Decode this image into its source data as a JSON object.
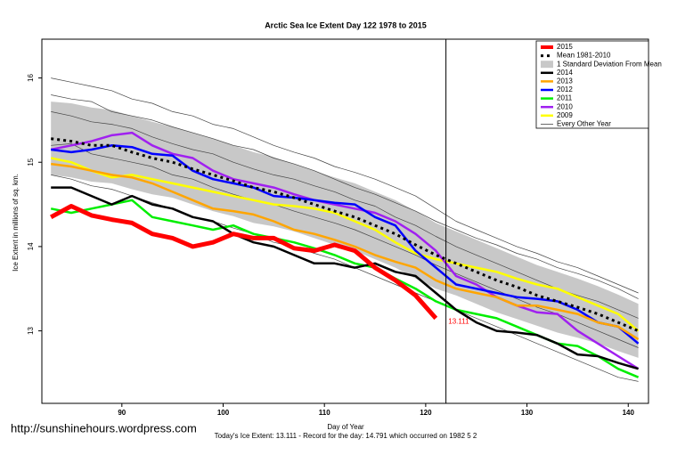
{
  "chart_data": {
    "type": "line",
    "title": "Arctic Sea Ice Extent Day 122 1978 to 2015",
    "xlabel": "Day of Year",
    "ylabel": "Ice Extent in millions of sq. km.",
    "footer": "Today's Ice Extent: 13.111  - Record for the day: 14.791 which occurred on 1982 5 2",
    "watermark": "http://sunshinehours.wordpress.com",
    "xlim": [
      82.1,
      142
    ],
    "ylim": [
      12.14,
      16.46
    ],
    "xticks": [
      90,
      100,
      110,
      120,
      130,
      140
    ],
    "yticks": [
      13,
      14,
      15,
      16
    ],
    "marker_x": 122,
    "x": [
      83,
      85,
      87,
      89,
      91,
      93,
      95,
      97,
      99,
      101,
      103,
      105,
      107,
      109,
      111,
      113,
      115,
      117,
      119,
      121,
      123,
      125,
      127,
      129,
      131,
      133,
      135,
      137,
      139,
      141
    ],
    "series": [
      {
        "name": "2015",
        "color": "#ff0000",
        "width": 5,
        "last_value_label": "13.111",
        "values": [
          14.35,
          14.48,
          14.37,
          14.32,
          14.28,
          14.15,
          14.1,
          14.0,
          14.05,
          14.15,
          14.1,
          14.1,
          13.98,
          13.95,
          14.02,
          13.95,
          13.75,
          13.6,
          13.42,
          13.15,
          null,
          null,
          null,
          null,
          null,
          null,
          null,
          null,
          null,
          null
        ]
      },
      {
        "name": "Mean 1981-2010",
        "color": "#000000",
        "width": 3,
        "dash": "3,4",
        "values": [
          15.28,
          15.25,
          15.2,
          15.2,
          15.12,
          15.05,
          15.0,
          14.92,
          14.85,
          14.78,
          14.7,
          14.65,
          14.58,
          14.5,
          14.42,
          14.35,
          14.25,
          14.15,
          14.02,
          13.9,
          13.8,
          13.7,
          13.6,
          13.52,
          13.42,
          13.35,
          13.28,
          13.2,
          13.1,
          13.0
        ]
      },
      {
        "name": "2014",
        "color": "#000000",
        "width": 2.5,
        "values": [
          14.7,
          14.7,
          14.6,
          14.5,
          14.6,
          14.5,
          14.45,
          14.35,
          14.3,
          14.15,
          14.05,
          14.0,
          13.9,
          13.8,
          13.8,
          13.75,
          13.8,
          13.7,
          13.65,
          13.45,
          13.25,
          13.1,
          13.0,
          12.98,
          12.95,
          12.85,
          12.72,
          12.7,
          12.62,
          12.55
        ]
      },
      {
        "name": "2013",
        "color": "#ffa500",
        "width": 2.5,
        "values": [
          14.98,
          14.95,
          14.9,
          14.85,
          14.82,
          14.75,
          14.65,
          14.55,
          14.45,
          14.42,
          14.38,
          14.3,
          14.2,
          14.15,
          14.08,
          14.0,
          13.9,
          13.82,
          13.75,
          13.6,
          13.5,
          13.45,
          13.4,
          13.3,
          13.3,
          13.25,
          13.2,
          13.1,
          13.05,
          12.9
        ]
      },
      {
        "name": "2012",
        "color": "#0000ff",
        "width": 2.5,
        "values": [
          15.15,
          15.12,
          15.15,
          15.2,
          15.18,
          15.1,
          15.08,
          14.9,
          14.8,
          14.75,
          14.7,
          14.6,
          14.58,
          14.55,
          14.52,
          14.5,
          14.35,
          14.25,
          13.95,
          13.75,
          13.55,
          13.5,
          13.45,
          13.4,
          13.38,
          13.35,
          13.25,
          13.1,
          13.05,
          12.85
        ]
      },
      {
        "name": "2011",
        "color": "#00ee00",
        "width": 2.5,
        "values": [
          14.45,
          14.4,
          14.45,
          14.5,
          14.55,
          14.35,
          14.3,
          14.25,
          14.2,
          14.25,
          14.15,
          14.1,
          14.05,
          13.98,
          13.9,
          13.8,
          13.75,
          13.62,
          13.5,
          13.35,
          13.25,
          13.2,
          13.15,
          13.05,
          12.95,
          12.85,
          12.82,
          12.7,
          12.55,
          12.45
        ]
      },
      {
        "name": "2010",
        "color": "#a020f0",
        "width": 2.5,
        "values": [
          15.15,
          15.2,
          15.25,
          15.32,
          15.35,
          15.2,
          15.1,
          15.05,
          14.9,
          14.8,
          14.75,
          14.7,
          14.62,
          14.55,
          14.5,
          14.45,
          14.4,
          14.3,
          14.15,
          13.95,
          13.65,
          13.55,
          13.4,
          13.3,
          13.22,
          13.2,
          13.0,
          12.85,
          12.7,
          12.55
        ]
      },
      {
        "name": "2009",
        "color": "#ffff00",
        "width": 2.5,
        "values": [
          15.05,
          15.0,
          14.9,
          14.82,
          14.85,
          14.8,
          14.75,
          14.7,
          14.65,
          14.6,
          14.55,
          14.5,
          14.48,
          14.45,
          14.4,
          14.3,
          14.2,
          14.05,
          13.92,
          13.85,
          13.8,
          13.75,
          13.7,
          13.62,
          13.55,
          13.5,
          13.4,
          13.3,
          13.2,
          13.0
        ]
      }
    ],
    "band": {
      "name": "1 Standard Deviation From Mean",
      "color": "#c8c8c8",
      "upper": [
        15.72,
        15.7,
        15.65,
        15.62,
        15.55,
        15.48,
        15.42,
        15.35,
        15.28,
        15.2,
        15.12,
        15.06,
        14.98,
        14.9,
        14.82,
        14.75,
        14.65,
        14.55,
        14.42,
        14.28,
        14.18,
        14.08,
        13.98,
        13.88,
        13.78,
        13.7,
        13.62,
        13.53,
        13.43,
        13.32
      ],
      "lower": [
        14.85,
        14.82,
        14.77,
        14.75,
        14.68,
        14.62,
        14.58,
        14.5,
        14.42,
        14.36,
        14.28,
        14.24,
        14.18,
        14.1,
        14.02,
        13.95,
        13.85,
        13.75,
        13.62,
        13.5,
        13.42,
        13.32,
        13.22,
        13.14,
        13.06,
        12.98,
        12.92,
        12.85,
        12.76,
        12.68
      ]
    },
    "background": {
      "name": "Every Other Year",
      "color": "#444444",
      "lines": [
        [
          16.0,
          15.95,
          15.9,
          15.85,
          15.75,
          15.7,
          15.6,
          15.55,
          15.45,
          15.4,
          15.3,
          15.2,
          15.12,
          15.05,
          14.95,
          14.88,
          14.8,
          14.7,
          14.6,
          14.45,
          14.3,
          14.2,
          14.1,
          14.0,
          13.92,
          13.82,
          13.75,
          13.65,
          13.55,
          13.45
        ],
        [
          15.6,
          15.55,
          15.48,
          15.45,
          15.4,
          15.3,
          15.22,
          15.15,
          15.1,
          15.0,
          14.92,
          14.85,
          14.8,
          14.72,
          14.65,
          14.55,
          14.48,
          14.35,
          14.25,
          14.12,
          14.0,
          13.9,
          13.8,
          13.7,
          13.6,
          13.5,
          13.42,
          13.35,
          13.25,
          13.15
        ],
        [
          15.2,
          15.22,
          15.1,
          15.05,
          15.0,
          14.95,
          14.85,
          14.8,
          14.7,
          14.62,
          14.55,
          14.5,
          14.42,
          14.35,
          14.28,
          14.2,
          14.1,
          14.0,
          13.9,
          13.78,
          13.68,
          13.58,
          13.48,
          13.38,
          13.28,
          13.2,
          13.1,
          13.0,
          12.9,
          12.8
        ],
        [
          14.85,
          14.8,
          14.72,
          14.68,
          14.6,
          14.52,
          14.45,
          14.35,
          14.3,
          14.22,
          14.15,
          14.05,
          14.0,
          13.92,
          13.85,
          13.75,
          13.65,
          13.55,
          13.45,
          13.35,
          13.25,
          13.15,
          13.05,
          12.95,
          12.85,
          12.75,
          12.65,
          12.55,
          12.45,
          12.4
        ],
        [
          15.8,
          15.75,
          15.72,
          15.6,
          15.55,
          15.5,
          15.42,
          15.35,
          15.28,
          15.2,
          15.15,
          15.05,
          14.98,
          14.9,
          14.8,
          14.7,
          14.62,
          14.52,
          14.42,
          14.3,
          14.2,
          14.1,
          14.02,
          13.92,
          13.85,
          13.75,
          13.68,
          13.6,
          13.5,
          13.38
        ]
      ]
    }
  }
}
